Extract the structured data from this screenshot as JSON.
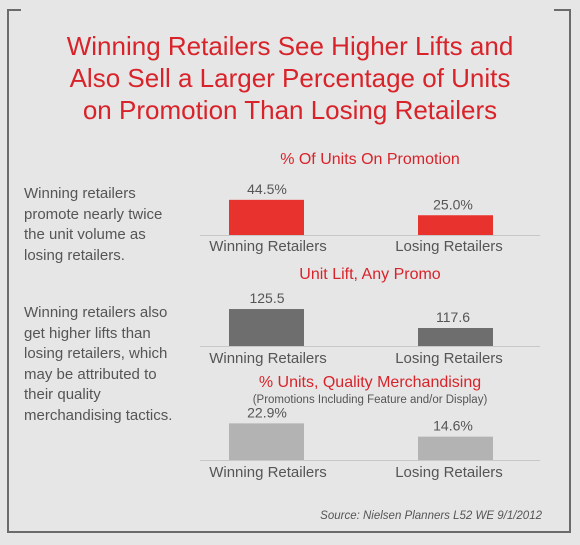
{
  "title_lines": [
    "Winning Retailers See Higher Lifts and",
    "Also Sell a Larger Percentage of Units",
    "on Promotion Than Losing Retailers"
  ],
  "side_text_1": "Winning retailers promote nearly twice the unit volume as losing retailers.",
  "side_text_2": "Winning retailers also get higher lifts than losing retailers, which may be attributed to their quality merchandising tactics.",
  "source": "Source: Nielsen Planners L52 WE 9/1/2012",
  "colors": {
    "accent": "#d8232a",
    "bar1": "#e8322e",
    "bar2": "#6e6e6e",
    "bar3": "#b3b3b3",
    "text": "#555555"
  },
  "chart_data": [
    {
      "type": "bar",
      "title": "% Of Units On Promotion",
      "categories": [
        "Winning Retailers",
        "Losing Retailers"
      ],
      "values": [
        44.5,
        25.0
      ],
      "value_labels": [
        "44.5%",
        "25.0%"
      ]
    },
    {
      "type": "bar",
      "title": "Unit Lift, Any Promo",
      "categories": [
        "Winning Retailers",
        "Losing Retailers"
      ],
      "values": [
        125.5,
        117.6
      ],
      "value_labels": [
        "125.5",
        "117.6"
      ]
    },
    {
      "type": "bar",
      "title": "% Units, Quality Merchandising",
      "subtitle": "(Promotions Including Feature and/or Display)",
      "categories": [
        "Winning Retailers",
        "Losing Retailers"
      ],
      "values": [
        22.9,
        14.6
      ],
      "value_labels": [
        "22.9%",
        "14.6%"
      ]
    }
  ]
}
